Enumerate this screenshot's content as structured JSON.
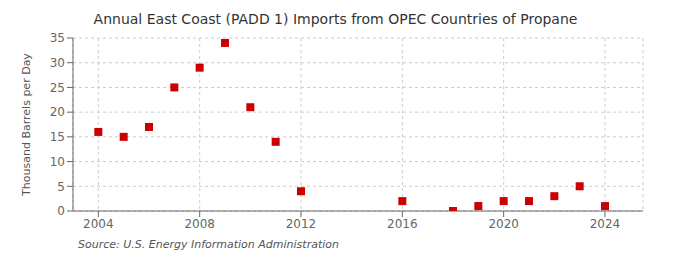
{
  "chart_data": {
    "type": "scatter",
    "title": "Annual East Coast (PADD 1) Imports from OPEC Countries of Propane",
    "y_label": "Thousand Barrels per Day",
    "annotations": [
      "Source: U.S. Energy Information Administration"
    ],
    "x": [
      2004,
      2005,
      2006,
      2007,
      2008,
      2009,
      2010,
      2011,
      2012,
      2016,
      2018,
      2019,
      2020,
      2021,
      2022,
      2023,
      2024
    ],
    "values": [
      16,
      15,
      17,
      25,
      29,
      34,
      21,
      14,
      4,
      2,
      0,
      1,
      2,
      2,
      3,
      5,
      1
    ],
    "xlim": [
      2003,
      2025.5
    ],
    "ylim": [
      0,
      35
    ],
    "xticks": [
      2004,
      2008,
      2012,
      2016,
      2020,
      2024
    ],
    "yticks": [
      0,
      5,
      10,
      15,
      20,
      25,
      30,
      35
    ],
    "color": "#cc0000",
    "marker": "square",
    "grid": true
  }
}
